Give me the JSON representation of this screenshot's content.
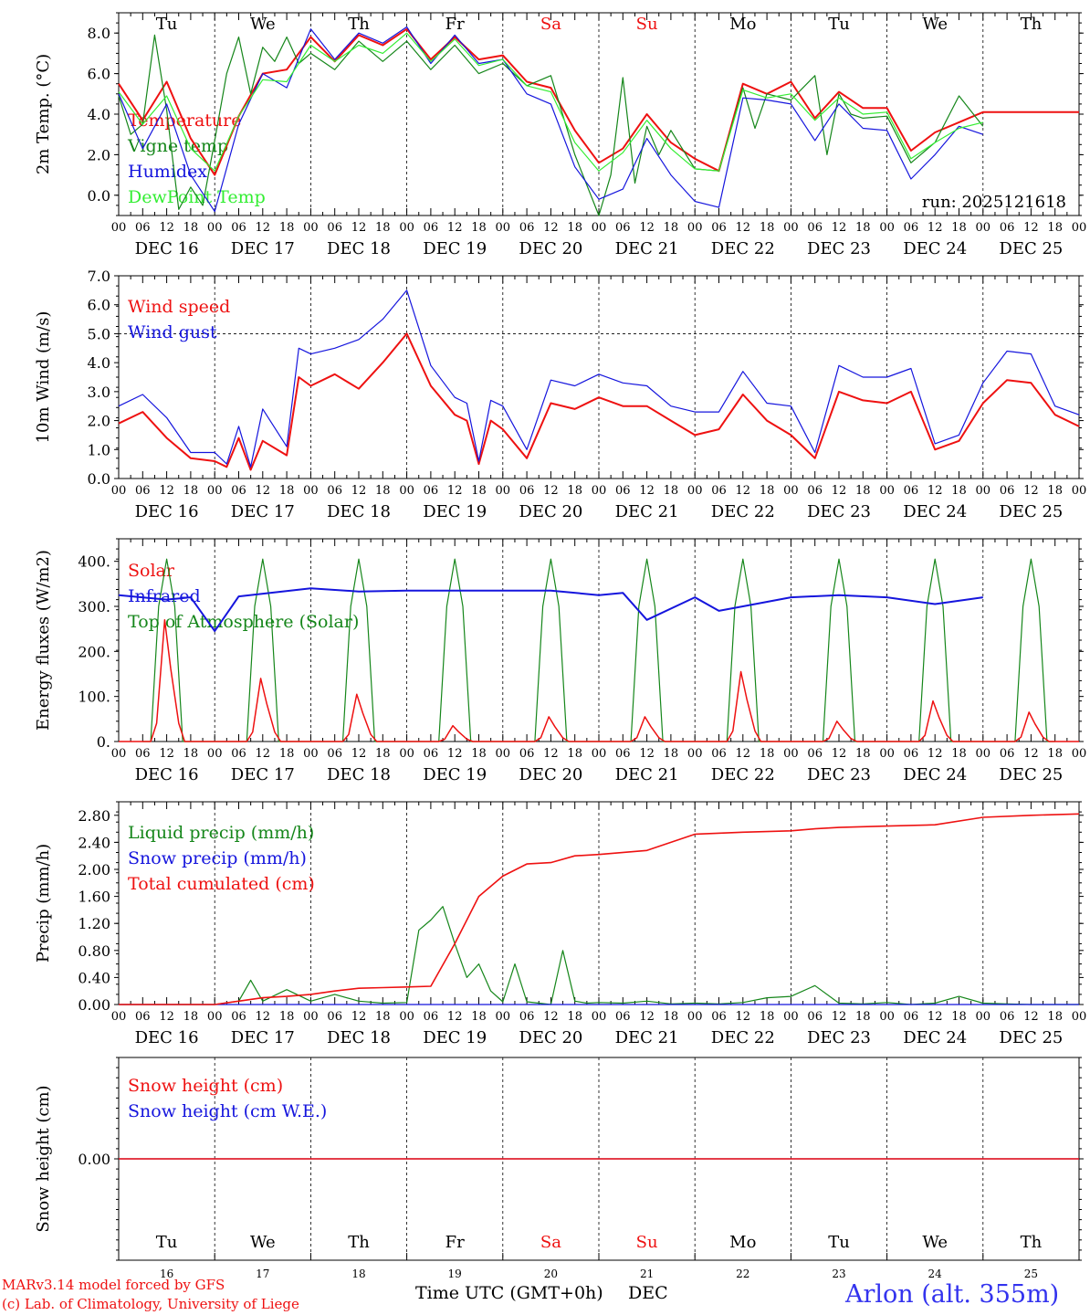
{
  "colors": {
    "red": "#ee1111",
    "blue": "#1515dd",
    "green": "#15861a",
    "lime": "#33ee33",
    "axis": "#000000"
  },
  "days": [
    "Tu",
    "We",
    "Th",
    "Fr",
    "Sa",
    "Su",
    "Mo",
    "Tu",
    "We",
    "Th"
  ],
  "weekend_days": [
    "Sa",
    "Su"
  ],
  "day_numbers": [
    "16",
    "17",
    "18",
    "19",
    "20",
    "21",
    "22",
    "23",
    "24",
    "25"
  ],
  "dates": [
    "DEC 16",
    "DEC 17",
    "DEC 18",
    "DEC 19",
    "DEC 20",
    "DEC 21",
    "DEC 22",
    "DEC 23",
    "DEC 24",
    "DEC 25"
  ],
  "hour_labels": [
    "00",
    "06",
    "12",
    "18"
  ],
  "footer": {
    "model": "MARv3.14 model forced by GFS",
    "lab": "(c) Lab. of Climatology, University of Liege",
    "xlabel": "Time UTC (GMT+0h)",
    "month": "DEC",
    "station": "Arlon (alt. 355m)"
  },
  "chart_data": [
    {
      "type": "line",
      "ylabel": "2m Temp. (°C)",
      "ylim": [
        -1,
        9
      ],
      "yticks": [
        "0.0",
        "2.0",
        "4.0",
        "6.0",
        "8.0"
      ],
      "annotation": "run: 2025121618",
      "x_unit": "hours since DEC 16 00 UTC",
      "series": [
        {
          "name": "Temperature",
          "color": "#ee1111",
          "x": [
            0,
            6,
            12,
            18,
            24,
            30,
            36,
            42,
            48,
            54,
            60,
            66,
            72,
            78,
            84,
            90,
            96,
            102,
            108,
            114,
            120,
            126,
            132,
            138,
            144,
            150,
            156,
            162,
            168,
            174,
            180,
            186,
            192,
            198,
            204,
            210,
            216,
            222,
            228,
            234,
            240
          ],
          "values": [
            5.5,
            3.7,
            5.6,
            2.8,
            1.0,
            3.9,
            6.0,
            6.2,
            7.8,
            6.6,
            7.9,
            7.4,
            8.2,
            6.7,
            7.8,
            6.7,
            6.9,
            5.6,
            5.3,
            3.2,
            1.6,
            2.3,
            4.0,
            2.6,
            1.8,
            1.2,
            5.5,
            5.0,
            5.6,
            3.8,
            5.1,
            4.3,
            4.3,
            2.2,
            3.1,
            3.6,
            4.1,
            4.1,
            4.1,
            4.1,
            4.1
          ]
        },
        {
          "name": "Vigne temp",
          "color": "#15861a",
          "x": [
            0,
            3,
            6,
            9,
            12,
            15,
            18,
            21,
            24,
            27,
            30,
            33,
            36,
            39,
            42,
            45,
            48,
            54,
            60,
            66,
            72,
            78,
            84,
            90,
            96,
            102,
            108,
            114,
            120,
            123,
            126,
            129,
            132,
            135,
            138,
            144,
            150,
            156,
            159,
            162,
            168,
            174,
            177,
            180,
            183,
            186,
            192,
            198,
            204,
            210,
            216
          ],
          "values": [
            4.9,
            3.0,
            3.5,
            7.9,
            4.2,
            -0.7,
            0.4,
            -0.5,
            2.7,
            6.0,
            7.8,
            5.0,
            7.3,
            6.6,
            7.8,
            6.5,
            7.0,
            6.2,
            7.6,
            6.6,
            7.6,
            6.2,
            7.4,
            6.0,
            6.5,
            5.4,
            5.9,
            2.0,
            -1.0,
            1.0,
            5.8,
            0.6,
            3.4,
            2.0,
            3.2,
            1.3,
            1.2,
            5.3,
            3.3,
            5.0,
            4.7,
            5.9,
            2.0,
            5.0,
            4.0,
            3.8,
            3.9,
            1.6,
            2.6,
            4.9,
            3.4
          ]
        },
        {
          "name": "Humidex",
          "color": "#1515dd",
          "x": [
            0,
            6,
            12,
            18,
            24,
            30,
            36,
            42,
            48,
            54,
            60,
            66,
            72,
            78,
            84,
            90,
            96,
            102,
            108,
            114,
            120,
            126,
            132,
            138,
            144,
            150,
            156,
            162,
            168,
            174,
            180,
            186,
            192,
            198,
            204,
            210,
            216
          ],
          "values": [
            5.0,
            2.3,
            4.5,
            1.0,
            -0.8,
            3.5,
            6.0,
            5.3,
            8.2,
            6.7,
            8.0,
            7.5,
            8.3,
            6.5,
            7.9,
            6.5,
            6.7,
            5.0,
            4.5,
            1.4,
            -0.2,
            0.3,
            2.8,
            1.0,
            -0.3,
            -0.6,
            4.8,
            4.7,
            4.5,
            2.7,
            4.5,
            3.3,
            3.2,
            0.8,
            2.0,
            3.4,
            3.0
          ]
        },
        {
          "name": "DewPoint Temp",
          "color": "#33ee33",
          "x": [
            0,
            6,
            12,
            18,
            24,
            30,
            36,
            42,
            48,
            54,
            60,
            66,
            72,
            78,
            84,
            90,
            96,
            102,
            108,
            114,
            120,
            126,
            132,
            138,
            144,
            150,
            156,
            162,
            168,
            174,
            180,
            186,
            192,
            198,
            204,
            210,
            216
          ],
          "values": [
            5.1,
            3.5,
            4.9,
            2.3,
            1.2,
            3.9,
            5.7,
            5.6,
            7.4,
            6.6,
            7.4,
            7.0,
            8.0,
            6.6,
            7.7,
            6.4,
            6.7,
            5.4,
            5.1,
            2.6,
            1.2,
            2.1,
            3.7,
            2.3,
            1.3,
            1.2,
            5.2,
            4.8,
            5.0,
            3.7,
            4.8,
            4.0,
            4.1,
            1.8,
            2.6,
            3.3,
            3.6
          ]
        }
      ]
    },
    {
      "type": "line",
      "ylabel": "10m Wind (m/s)",
      "ylim": [
        0,
        7
      ],
      "yticks": [
        "0.0",
        "1.0",
        "2.0",
        "3.0",
        "4.0",
        "5.0",
        "6.0",
        "7.0"
      ],
      "reference_line": 5.0,
      "x_unit": "hours since DEC 16 00 UTC",
      "series": [
        {
          "name": "Wind speed",
          "color": "#ee1111",
          "x": [
            0,
            6,
            12,
            18,
            24,
            27,
            30,
            33,
            36,
            42,
            45,
            48,
            54,
            60,
            66,
            72,
            78,
            84,
            87,
            90,
            93,
            96,
            102,
            108,
            114,
            120,
            126,
            132,
            138,
            144,
            150,
            156,
            162,
            168,
            174,
            180,
            186,
            192,
            198,
            204,
            210,
            216,
            222,
            228,
            234,
            240
          ],
          "values": [
            1.9,
            2.3,
            1.4,
            0.7,
            0.6,
            0.4,
            1.4,
            0.3,
            1.3,
            0.8,
            3.5,
            3.2,
            3.6,
            3.1,
            4.0,
            5.0,
            3.2,
            2.2,
            2.0,
            0.5,
            2.0,
            1.7,
            0.7,
            2.6,
            2.4,
            2.8,
            2.5,
            2.5,
            2.0,
            1.5,
            1.7,
            2.9,
            2.0,
            1.5,
            0.7,
            3.0,
            2.7,
            2.6,
            3.0,
            1.0,
            1.3,
            2.6,
            3.4,
            3.3,
            2.2,
            1.8
          ]
        },
        {
          "name": "Wind gust",
          "color": "#1515dd",
          "x": [
            0,
            6,
            12,
            18,
            24,
            27,
            30,
            33,
            36,
            42,
            45,
            48,
            54,
            60,
            66,
            72,
            78,
            84,
            87,
            90,
            93,
            96,
            102,
            108,
            114,
            120,
            126,
            132,
            138,
            144,
            150,
            156,
            162,
            168,
            174,
            180,
            186,
            192,
            198,
            204,
            210,
            216,
            222,
            228,
            234,
            240
          ],
          "values": [
            2.5,
            2.9,
            2.1,
            0.9,
            0.9,
            0.5,
            1.8,
            0.4,
            2.4,
            1.1,
            4.5,
            4.3,
            4.5,
            4.8,
            5.5,
            6.5,
            3.9,
            2.8,
            2.6,
            0.6,
            2.7,
            2.5,
            1.0,
            3.4,
            3.2,
            3.6,
            3.3,
            3.2,
            2.5,
            2.3,
            2.3,
            3.7,
            2.6,
            2.5,
            0.9,
            3.9,
            3.5,
            3.5,
            3.8,
            1.2,
            1.5,
            3.3,
            4.4,
            4.3,
            2.5,
            2.2
          ]
        }
      ]
    },
    {
      "type": "line",
      "ylabel": "Energy fluxes (W/m2)",
      "ylim": [
        0,
        450
      ],
      "yticks": [
        "0.",
        "100.",
        "200.",
        "300.",
        "400."
      ],
      "x_unit": "hours since DEC 16 00 UTC",
      "series": [
        {
          "name": "Solar",
          "color": "#ee1111",
          "peaks": [
            270,
            140,
            105,
            35,
            55,
            55,
            155,
            45,
            90,
            65
          ]
        },
        {
          "name": "Infrared",
          "color": "#1515dd",
          "x": [
            0,
            12,
            18,
            24,
            30,
            48,
            60,
            72,
            96,
            108,
            120,
            126,
            132,
            144,
            150,
            156,
            168,
            180,
            192,
            204,
            216
          ],
          "values": [
            325,
            315,
            320,
            245,
            322,
            340,
            333,
            335,
            335,
            335,
            325,
            330,
            270,
            320,
            290,
            300,
            320,
            325,
            320,
            305,
            320
          ]
        },
        {
          "name": "Top of Atmosphere (Solar)",
          "color": "#15861a",
          "peak": 405
        }
      ]
    },
    {
      "type": "line",
      "ylabel": "Precip (mm/h)",
      "ylim": [
        0,
        3.0
      ],
      "yticks": [
        "0.00",
        "0.40",
        "0.80",
        "1.20",
        "1.60",
        "2.00",
        "2.40",
        "2.80"
      ],
      "x_unit": "hours since DEC 16 00 UTC",
      "series": [
        {
          "name": "Liquid precip (mm/h)",
          "color": "#15861a",
          "x": [
            0,
            24,
            30,
            33,
            36,
            42,
            48,
            54,
            60,
            66,
            72,
            75,
            78,
            81,
            84,
            87,
            90,
            93,
            96,
            99,
            102,
            105,
            108,
            111,
            114,
            117,
            120,
            126,
            132,
            138,
            144,
            150,
            156,
            162,
            168,
            174,
            180,
            186,
            192,
            198,
            204,
            210,
            216,
            222,
            228,
            234,
            240
          ],
          "values": [
            0,
            0,
            0.05,
            0.36,
            0.05,
            0.22,
            0.05,
            0.15,
            0.05,
            0.02,
            0.03,
            1.1,
            1.25,
            1.45,
            0.9,
            0.4,
            0.6,
            0.2,
            0.04,
            0.6,
            0.04,
            0.02,
            0.0,
            0.8,
            0.05,
            0.02,
            0.03,
            0.02,
            0.05,
            0.01,
            0.02,
            0.01,
            0.03,
            0.1,
            0.12,
            0.28,
            0.02,
            0.01,
            0.03,
            0.0,
            0.02,
            0.12,
            0.02,
            0.01,
            0.0,
            0.0,
            0.0
          ]
        },
        {
          "name": "Snow precip (mm/h)",
          "color": "#1515dd",
          "x": [
            0,
            240
          ],
          "values": [
            0,
            0
          ]
        },
        {
          "name": "Total cumulated (cm)",
          "color": "#ee1111",
          "x": [
            0,
            24,
            30,
            36,
            42,
            48,
            54,
            60,
            66,
            72,
            78,
            84,
            90,
            96,
            102,
            108,
            114,
            120,
            132,
            144,
            156,
            162,
            168,
            174,
            180,
            192,
            204,
            216,
            228,
            240
          ],
          "values": [
            0,
            0,
            0.05,
            0.1,
            0.12,
            0.15,
            0.2,
            0.24,
            0.25,
            0.26,
            0.27,
            0.9,
            1.6,
            1.9,
            2.08,
            2.1,
            2.2,
            2.22,
            2.28,
            2.52,
            2.55,
            2.56,
            2.57,
            2.6,
            2.62,
            2.64,
            2.66,
            2.77,
            2.8,
            2.82
          ]
        }
      ]
    },
    {
      "type": "line",
      "ylabel": "Snow height (cm)",
      "ylim": [
        -1,
        1
      ],
      "yticks": [
        "0.00"
      ],
      "x_unit": "hours since DEC 16 00 UTC",
      "series": [
        {
          "name": "Snow height (cm)",
          "color": "#ee1111",
          "x": [
            0,
            240
          ],
          "values": [
            0,
            0
          ]
        },
        {
          "name": "Snow height (cm W.E.)",
          "color": "#1515dd",
          "x": [
            0,
            240
          ],
          "values": [
            0,
            0
          ]
        }
      ]
    }
  ]
}
